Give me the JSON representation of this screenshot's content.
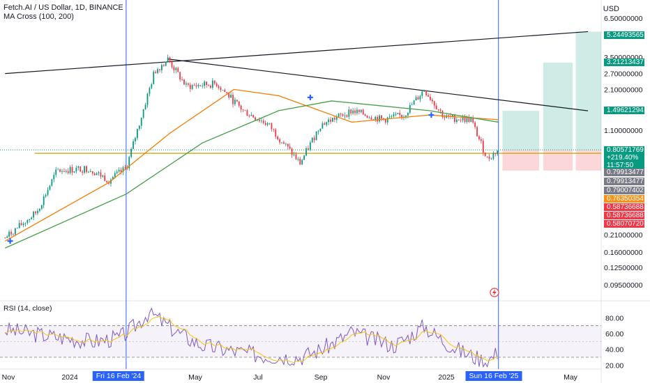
{
  "header": {
    "title": "Fetch.AI / US Dollar, 1D, BINANCE",
    "indicator": "MA Cross (100, 200)",
    "currency": "USD"
  },
  "rsi": {
    "title": "RSI (14, close)",
    "ticks": [
      "80.00",
      "60.00",
      "40.00",
      "20.00"
    ]
  },
  "price_axis_ticks": [
    "6.50000000",
    "3.50000000",
    "2.70000000",
    "2.10000000",
    "1.10000000",
    "0.21000000",
    "0.16000000",
    "0.12500000",
    "0.09500000"
  ],
  "time_axis": [
    {
      "label": "Nov",
      "highlight": false
    },
    {
      "label": "2024",
      "highlight": false
    },
    {
      "label": "Fri 16 Feb '24",
      "highlight": true
    },
    {
      "label": "May",
      "highlight": false
    },
    {
      "label": "Jul",
      "highlight": false
    },
    {
      "label": "Sep",
      "highlight": false
    },
    {
      "label": "Nov",
      "highlight": false
    },
    {
      "label": "2025",
      "highlight": false
    },
    {
      "label": "Sun 16 Feb '25",
      "highlight": true
    },
    {
      "label": "May",
      "highlight": false
    }
  ],
  "price_labels": [
    {
      "text": "5.24493565",
      "color": "#089981"
    },
    {
      "text": "3.21213437",
      "color": "#089981"
    },
    {
      "text": "1.49621294",
      "color": "#089981"
    },
    {
      "text": "0.80571769\n+219.40%\n11:57:50",
      "color": "#089981"
    },
    {
      "text": "0.79913477",
      "color": "#787b86"
    },
    {
      "text": "0.79913477",
      "color": "#787b86"
    },
    {
      "text": "0.79007402",
      "color": "#787b86"
    },
    {
      "text": "0.76350354",
      "color": "#f7931a"
    },
    {
      "text": "0.58736688",
      "color": "#f23645"
    },
    {
      "text": "0.58736688",
      "color": "#f23645"
    },
    {
      "text": "0.58070720",
      "color": "#f23645"
    }
  ],
  "chart_data": {
    "type": "candlestick",
    "title": "Fetch.AI / US Dollar, 1D, BINANCE",
    "y_scale": "log",
    "ylim": [
      0.08,
      7.0
    ],
    "approx_close_path": [
      {
        "date": "2023-10-20",
        "close": 0.2
      },
      {
        "date": "2023-11-20",
        "close": 0.3
      },
      {
        "date": "2023-12-10",
        "close": 0.58
      },
      {
        "date": "2024-01-10",
        "close": 0.6
      },
      {
        "date": "2024-01-30",
        "close": 0.5
      },
      {
        "date": "2024-02-16",
        "close": 0.6
      },
      {
        "date": "2024-03-01",
        "close": 1.3
      },
      {
        "date": "2024-03-15",
        "close": 2.8
      },
      {
        "date": "2024-03-28",
        "close": 3.4
      },
      {
        "date": "2024-04-15",
        "close": 2.2
      },
      {
        "date": "2024-05-15",
        "close": 2.3
      },
      {
        "date": "2024-06-10",
        "close": 1.5
      },
      {
        "date": "2024-07-05",
        "close": 1.2
      },
      {
        "date": "2024-08-05",
        "close": 0.65
      },
      {
        "date": "2024-08-25",
        "close": 1.2
      },
      {
        "date": "2024-09-25",
        "close": 1.5
      },
      {
        "date": "2024-10-25",
        "close": 1.3
      },
      {
        "date": "2024-11-15",
        "close": 1.4
      },
      {
        "date": "2024-12-05",
        "close": 2.1
      },
      {
        "date": "2024-12-25",
        "close": 1.35
      },
      {
        "date": "2025-01-20",
        "close": 1.3
      },
      {
        "date": "2025-02-05",
        "close": 0.7
      },
      {
        "date": "2025-02-16",
        "close": 0.806
      }
    ],
    "ma100": [
      {
        "date": "2023-10-20",
        "value": 0.19
      },
      {
        "date": "2024-01-30",
        "value": 0.48
      },
      {
        "date": "2024-03-30",
        "value": 1.05
      },
      {
        "date": "2024-06-01",
        "value": 2.1
      },
      {
        "date": "2024-07-15",
        "value": 1.9
      },
      {
        "date": "2024-09-25",
        "value": 1.25
      },
      {
        "date": "2024-12-10",
        "value": 1.4
      },
      {
        "date": "2025-02-16",
        "value": 1.3
      }
    ],
    "ma200": [
      {
        "date": "2023-10-20",
        "value": 0.17
      },
      {
        "date": "2024-02-16",
        "value": 0.4
      },
      {
        "date": "2024-05-01",
        "value": 0.9
      },
      {
        "date": "2024-07-15",
        "value": 1.5
      },
      {
        "date": "2024-09-05",
        "value": 1.75
      },
      {
        "date": "2024-12-10",
        "value": 1.5
      },
      {
        "date": "2025-02-16",
        "value": 1.25
      }
    ],
    "ma_cross_markers": [
      {
        "date": "2023-10-25",
        "value": 0.19
      },
      {
        "date": "2024-08-15",
        "value": 1.85
      },
      {
        "date": "2024-12-12",
        "value": 1.4
      }
    ],
    "trendlines": [
      {
        "from": {
          "date": "2023-10-20",
          "value": 2.7
        },
        "to": {
          "date": "2025-05-15",
          "value": 5.24493565
        }
      },
      {
        "from": {
          "date": "2024-03-28",
          "value": 3.4
        },
        "to": {
          "date": "2025-05-15",
          "value": 1.49621294
        }
      }
    ],
    "horizontal_line": {
      "value": 0.76350354,
      "color": "#c8a200"
    },
    "target_zones": [
      {
        "top": 1.49621294,
        "bottom": 0.80571769,
        "kind": "profit"
      },
      {
        "top": 3.21213437,
        "bottom": 0.80571769,
        "kind": "profit"
      },
      {
        "top": 5.24493565,
        "bottom": 0.80571769,
        "kind": "profit"
      },
      {
        "top": 0.80571769,
        "bottom": 0.5807072,
        "kind": "loss"
      }
    ],
    "rsi_series_approx": [
      {
        "date": "2023-10-20",
        "value": 65
      },
      {
        "date": "2024-01-15",
        "value": 50
      },
      {
        "date": "2024-02-10",
        "value": 55
      },
      {
        "date": "2024-03-10",
        "value": 88
      },
      {
        "date": "2024-05-01",
        "value": 45
      },
      {
        "date": "2024-07-01",
        "value": 32
      },
      {
        "date": "2024-08-05",
        "value": 30
      },
      {
        "date": "2024-09-25",
        "value": 62
      },
      {
        "date": "2024-11-05",
        "value": 45
      },
      {
        "date": "2024-12-05",
        "value": 70
      },
      {
        "date": "2025-01-10",
        "value": 38
      },
      {
        "date": "2025-02-05",
        "value": 25
      },
      {
        "date": "2025-02-16",
        "value": 38
      }
    ]
  }
}
